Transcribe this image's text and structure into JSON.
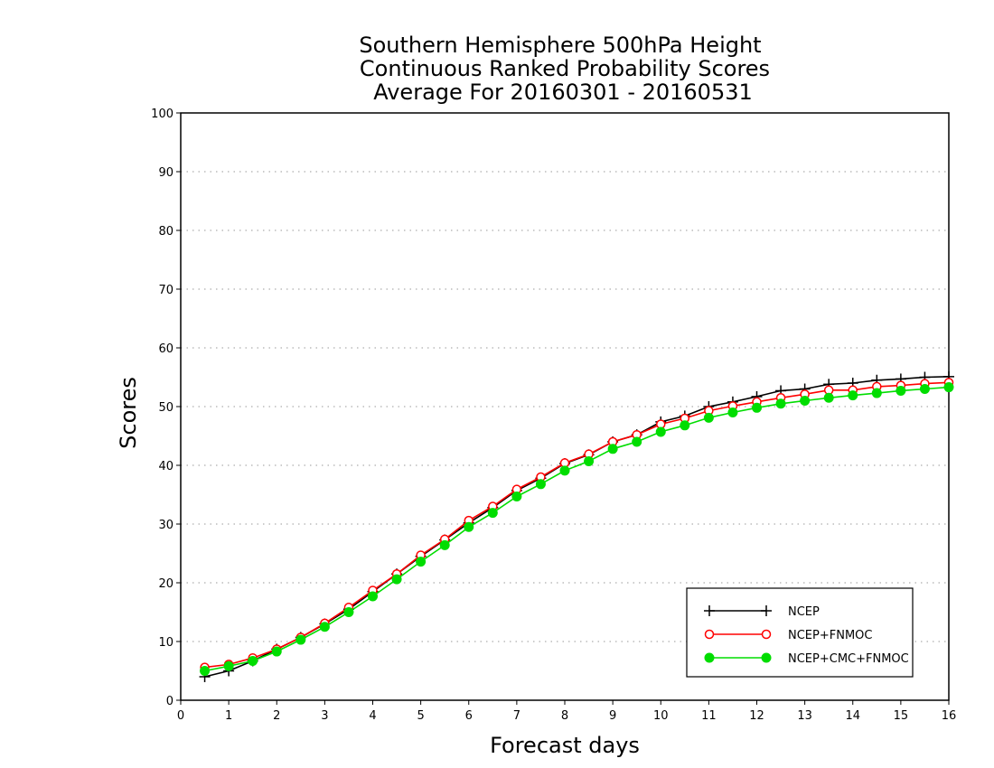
{
  "chart_data": {
    "type": "line",
    "title": [
      "Southern Hemisphere 500hPa Height",
      "Continuous Ranked Probability Scores",
      "Average For 20160301 - 20160531"
    ],
    "xlabel": "Forecast days",
    "ylabel": "Scores",
    "xlim": [
      0,
      16
    ],
    "ylim": [
      0,
      100
    ],
    "xticks": [
      0,
      1,
      2,
      3,
      4,
      5,
      6,
      7,
      8,
      9,
      10,
      11,
      12,
      13,
      14,
      15,
      16
    ],
    "yticks": [
      0,
      10,
      20,
      30,
      40,
      50,
      60,
      70,
      80,
      90,
      100
    ],
    "grid": "horizontal dotted",
    "legend_position": "bottom-right",
    "x": [
      0.5,
      1.0,
      1.5,
      2.0,
      2.5,
      3.0,
      3.5,
      4.0,
      4.5,
      5.0,
      5.5,
      6.0,
      6.5,
      7.0,
      7.5,
      8.0,
      8.5,
      9.0,
      9.5,
      10.0,
      10.5,
      11.0,
      11.5,
      12.0,
      12.5,
      13.0,
      13.5,
      14.0,
      14.5,
      15.0,
      15.5,
      16.0
    ],
    "series": [
      {
        "name": "NCEP",
        "color": "#000000",
        "marker": "plus",
        "values": [
          4.0,
          5.0,
          6.7,
          8.7,
          10.7,
          13.0,
          15.5,
          18.5,
          21.5,
          24.5,
          27.3,
          30.2,
          32.8,
          35.7,
          37.8,
          40.3,
          41.8,
          44.0,
          45.2,
          47.4,
          48.4,
          50.0,
          50.8,
          51.7,
          52.7,
          53.0,
          53.8,
          54.0,
          54.5,
          54.7,
          55.0,
          55.1
        ]
      },
      {
        "name": "NCEP+FNMOC",
        "color": "#ff0000",
        "marker": "open-circle",
        "values": [
          5.6,
          6.1,
          7.2,
          8.7,
          10.7,
          13.1,
          15.8,
          18.7,
          21.5,
          24.7,
          27.4,
          30.6,
          33.0,
          35.9,
          38.0,
          40.4,
          41.9,
          44.0,
          45.2,
          47.0,
          48.0,
          49.3,
          50.1,
          50.8,
          51.5,
          52.1,
          52.8,
          52.8,
          53.4,
          53.6,
          53.9,
          54.1
        ]
      },
      {
        "name": "NCEP+CMC+FNMOC",
        "color": "#00dd00",
        "marker": "filled-circle",
        "values": [
          5.0,
          5.8,
          6.7,
          8.3,
          10.3,
          12.5,
          15.0,
          17.7,
          20.6,
          23.6,
          26.4,
          29.5,
          31.9,
          34.7,
          36.8,
          39.1,
          40.7,
          42.8,
          44.0,
          45.7,
          46.8,
          48.1,
          49.0,
          49.8,
          50.5,
          51.0,
          51.5,
          51.9,
          52.3,
          52.7,
          53.0,
          53.3
        ]
      }
    ]
  }
}
